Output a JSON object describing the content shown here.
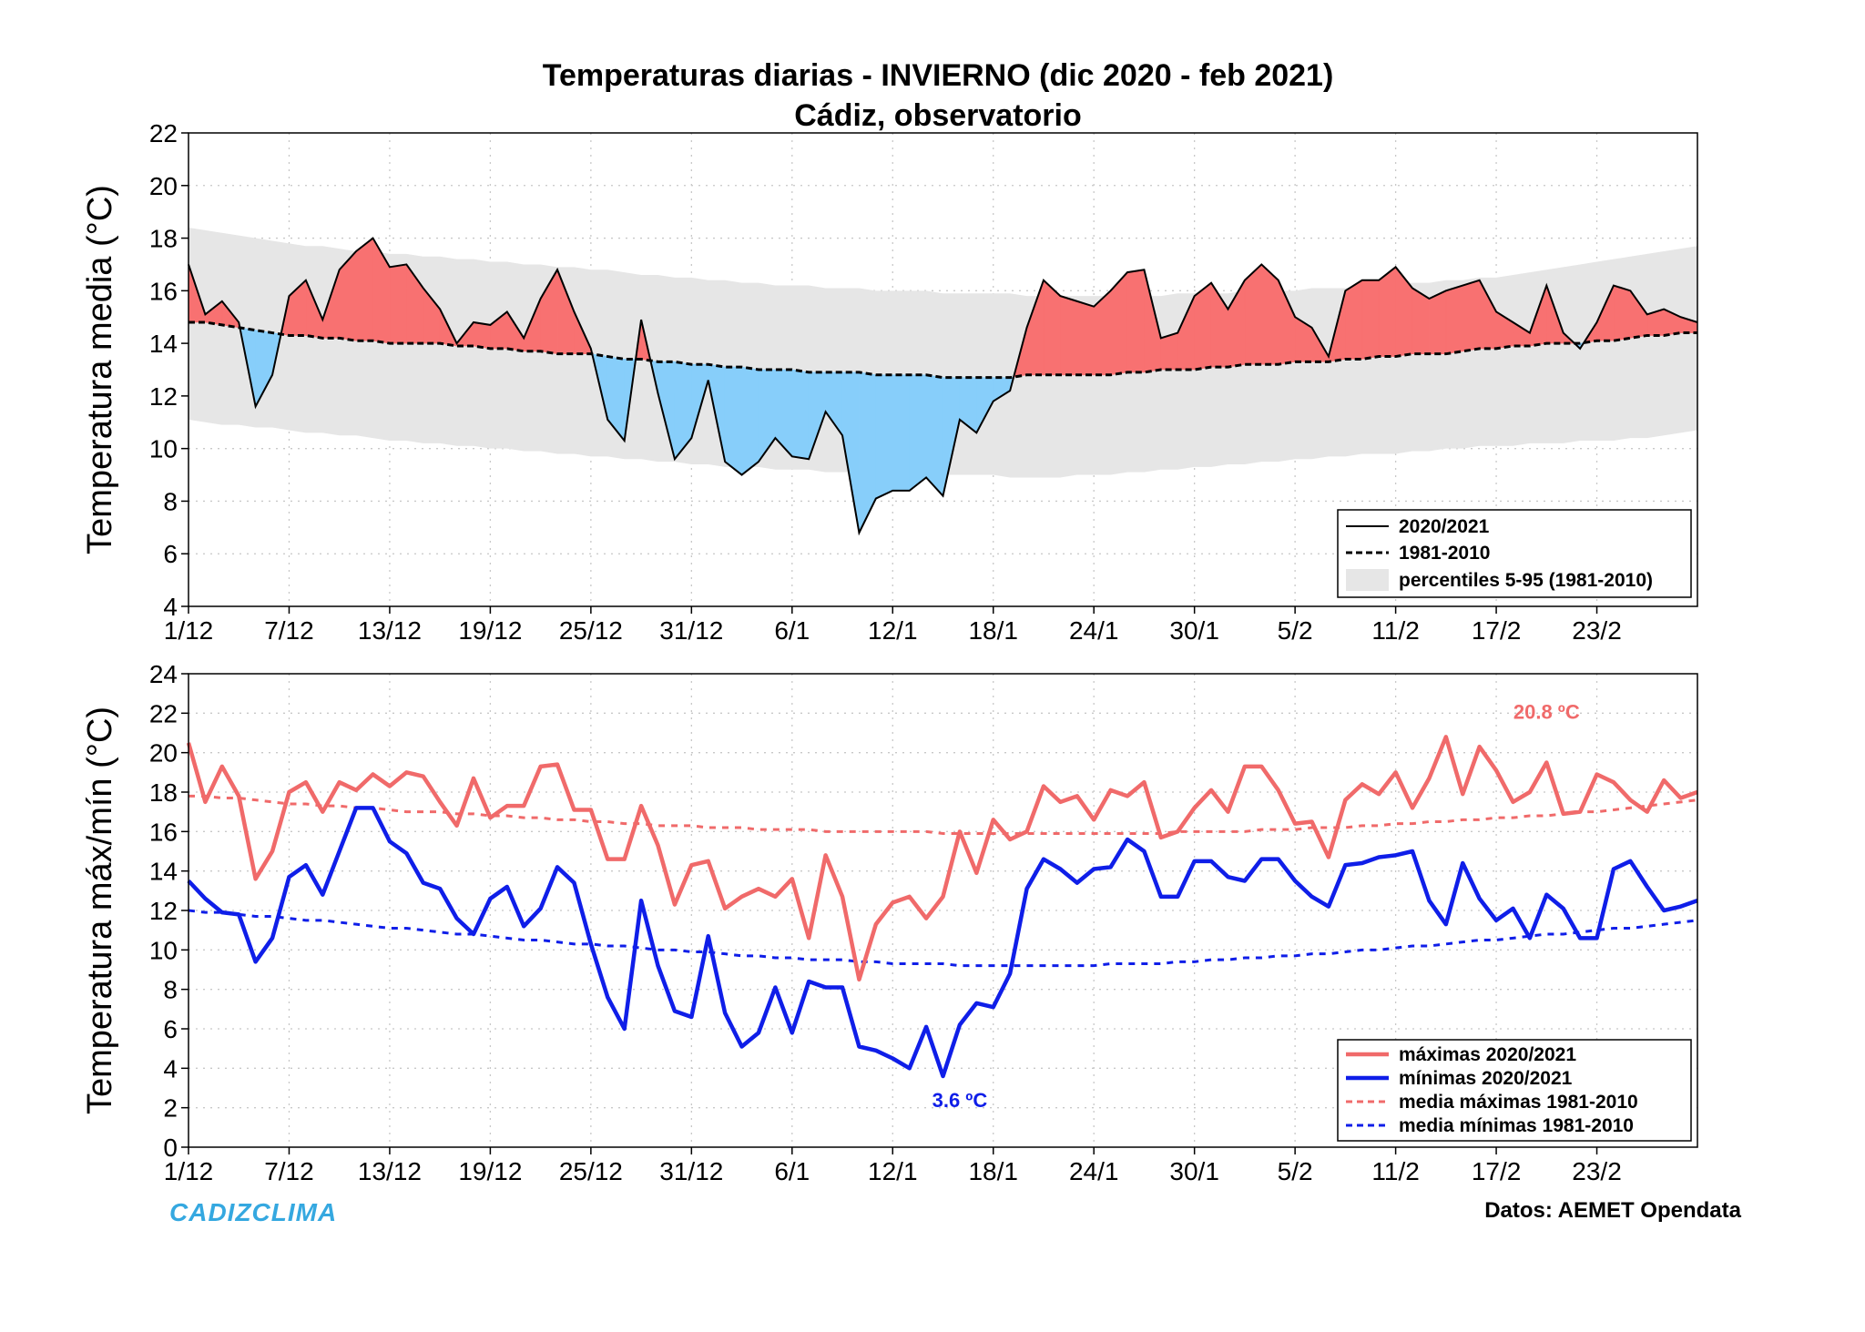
{
  "titles": {
    "line1": "Temperaturas diarias - INVIERNO (dic 2020 - feb 2021)",
    "line2": "Cádiz, observatorio"
  },
  "colors": {
    "above": "#f87171",
    "below": "#87cefa",
    "band": "#e6e6e6",
    "max_line": "#f06a6a",
    "min_line": "#0f1ee8",
    "brand": "#35a8e0"
  },
  "footer": {
    "brand": "CADIZCLIMA",
    "source": "Datos: AEMET Opendata"
  },
  "chart_data": [
    {
      "type": "area",
      "ylabel": "Temperatura media (°C)",
      "ylim": [
        4,
        22
      ],
      "yticks": [
        4,
        6,
        8,
        10,
        12,
        14,
        16,
        18,
        20,
        22
      ],
      "xticks": [
        "1/12",
        "7/12",
        "13/12",
        "19/12",
        "25/12",
        "31/12",
        "6/1",
        "12/1",
        "18/1",
        "24/1",
        "30/1",
        "5/2",
        "11/2",
        "17/2",
        "23/2"
      ],
      "tick_every": 6,
      "n_days": 91,
      "grid": true,
      "legend_position": "bottom-right",
      "legend": [
        "2020/2021",
        "1981-2010",
        "percentiles 5-95 (1981-2010)"
      ],
      "series": [
        {
          "name": "2020/2021",
          "values": [
            17.0,
            15.1,
            15.6,
            14.8,
            11.6,
            12.8,
            15.8,
            16.4,
            14.9,
            16.8,
            17.5,
            18.0,
            16.9,
            17.0,
            16.1,
            15.3,
            14.0,
            14.8,
            14.7,
            15.2,
            14.2,
            15.7,
            16.8,
            15.2,
            13.8,
            11.1,
            10.3,
            14.9,
            12.1,
            9.6,
            10.4,
            12.6,
            9.5,
            9.0,
            9.5,
            10.4,
            9.7,
            9.6,
            11.4,
            10.5,
            6.8,
            8.1,
            8.4,
            8.4,
            8.9,
            8.2,
            11.1,
            10.6,
            11.8,
            12.2,
            14.6,
            16.4,
            15.8,
            15.6,
            15.4,
            16.0,
            16.7,
            16.8,
            14.2,
            14.4,
            15.8,
            16.3,
            15.3,
            16.4,
            17.0,
            16.4,
            15.0,
            14.6,
            13.5,
            16.0,
            16.4,
            16.4,
            16.9,
            16.1,
            15.7,
            16.0,
            16.2,
            16.4,
            15.2,
            14.8,
            14.4,
            16.2,
            14.4,
            13.8,
            14.8,
            16.2,
            16.0,
            15.1,
            15.3,
            15.0,
            14.8
          ]
        },
        {
          "name": "1981-2010",
          "values": [
            14.8,
            14.8,
            14.7,
            14.6,
            14.5,
            14.4,
            14.3,
            14.3,
            14.2,
            14.2,
            14.1,
            14.1,
            14.0,
            14.0,
            14.0,
            14.0,
            13.9,
            13.9,
            13.8,
            13.8,
            13.7,
            13.7,
            13.6,
            13.6,
            13.6,
            13.5,
            13.4,
            13.4,
            13.3,
            13.3,
            13.2,
            13.2,
            13.1,
            13.1,
            13.0,
            13.0,
            13.0,
            12.9,
            12.9,
            12.9,
            12.9,
            12.8,
            12.8,
            12.8,
            12.8,
            12.7,
            12.7,
            12.7,
            12.7,
            12.7,
            12.8,
            12.8,
            12.8,
            12.8,
            12.8,
            12.8,
            12.9,
            12.9,
            13.0,
            13.0,
            13.0,
            13.1,
            13.1,
            13.2,
            13.2,
            13.2,
            13.3,
            13.3,
            13.3,
            13.4,
            13.4,
            13.5,
            13.5,
            13.6,
            13.6,
            13.6,
            13.7,
            13.8,
            13.8,
            13.9,
            13.9,
            14.0,
            14.0,
            14.0,
            14.1,
            14.1,
            14.2,
            14.3,
            14.3,
            14.4,
            14.4
          ]
        },
        {
          "name": "percentil 95 (1981-2010)",
          "values": [
            18.4,
            18.3,
            18.2,
            18.1,
            18.0,
            17.9,
            17.8,
            17.7,
            17.7,
            17.6,
            17.5,
            17.5,
            17.4,
            17.4,
            17.3,
            17.3,
            17.2,
            17.2,
            17.1,
            17.1,
            17.0,
            17.0,
            16.9,
            16.9,
            16.8,
            16.8,
            16.7,
            16.6,
            16.6,
            16.5,
            16.5,
            16.4,
            16.4,
            16.3,
            16.3,
            16.2,
            16.2,
            16.2,
            16.1,
            16.1,
            16.1,
            16.0,
            16.0,
            16.0,
            16.0,
            15.9,
            15.9,
            15.9,
            15.9,
            15.9,
            15.8,
            15.8,
            15.8,
            15.8,
            15.8,
            15.8,
            15.8,
            15.8,
            15.8,
            15.9,
            15.9,
            15.9,
            15.9,
            16.0,
            16.0,
            16.0,
            16.0,
            16.1,
            16.1,
            16.1,
            16.2,
            16.2,
            16.2,
            16.3,
            16.3,
            16.4,
            16.4,
            16.5,
            16.5,
            16.6,
            16.7,
            16.8,
            16.9,
            17.0,
            17.1,
            17.2,
            17.3,
            17.4,
            17.5,
            17.6,
            17.7
          ]
        },
        {
          "name": "percentil 5 (1981-2010)",
          "values": [
            11.1,
            11.0,
            10.9,
            10.9,
            10.8,
            10.8,
            10.7,
            10.6,
            10.6,
            10.5,
            10.5,
            10.4,
            10.3,
            10.3,
            10.2,
            10.2,
            10.1,
            10.1,
            10.0,
            10.0,
            9.9,
            9.9,
            9.8,
            9.8,
            9.7,
            9.7,
            9.6,
            9.6,
            9.5,
            9.5,
            9.4,
            9.4,
            9.3,
            9.3,
            9.3,
            9.2,
            9.2,
            9.2,
            9.1,
            9.1,
            9.1,
            9.1,
            9.1,
            9.0,
            9.0,
            9.0,
            9.0,
            9.0,
            9.0,
            8.9,
            8.9,
            8.9,
            8.9,
            9.0,
            9.0,
            9.0,
            9.1,
            9.1,
            9.2,
            9.2,
            9.3,
            9.3,
            9.4,
            9.4,
            9.5,
            9.5,
            9.6,
            9.6,
            9.7,
            9.7,
            9.8,
            9.8,
            9.8,
            9.9,
            9.9,
            10.0,
            10.0,
            10.1,
            10.1,
            10.1,
            10.2,
            10.2,
            10.2,
            10.3,
            10.3,
            10.3,
            10.4,
            10.4,
            10.5,
            10.6,
            10.7
          ]
        }
      ]
    },
    {
      "type": "line",
      "ylabel": "Temperatura máx/mín (°C)",
      "ylim": [
        0,
        24
      ],
      "yticks": [
        0,
        2,
        4,
        6,
        8,
        10,
        12,
        14,
        16,
        18,
        20,
        22,
        24
      ],
      "xticks": [
        "1/12",
        "7/12",
        "13/12",
        "19/12",
        "25/12",
        "31/12",
        "6/1",
        "12/1",
        "18/1",
        "24/1",
        "30/1",
        "5/2",
        "11/2",
        "17/2",
        "23/2"
      ],
      "tick_every": 6,
      "n_days": 91,
      "grid": true,
      "legend_position": "bottom-right",
      "legend": [
        "máximas 2020/2021",
        "mínimas 2020/2021",
        "media máximas 1981-2010",
        "media mínimas 1981-2010"
      ],
      "annotations": [
        {
          "text": "20.8 ºC",
          "series": "máximas 2020/2021",
          "x": 81,
          "y": 20.8
        },
        {
          "text": "3.6 ºC",
          "series": "mínimas 2020/2021",
          "x": 46,
          "y": 3.6
        }
      ],
      "series": [
        {
          "name": "máximas 2020/2021",
          "values": [
            20.5,
            17.5,
            19.3,
            17.8,
            13.6,
            15.0,
            18.0,
            18.5,
            17.0,
            18.5,
            18.1,
            18.9,
            18.3,
            19.0,
            18.8,
            17.5,
            16.3,
            18.7,
            16.7,
            17.3,
            17.3,
            19.3,
            19.4,
            17.1,
            17.1,
            14.6,
            14.6,
            17.3,
            15.3,
            12.3,
            14.3,
            14.5,
            12.1,
            12.7,
            13.1,
            12.7,
            13.6,
            10.6,
            14.8,
            12.7,
            8.5,
            11.3,
            12.4,
            12.7,
            11.6,
            12.7,
            16.0,
            13.9,
            16.6,
            15.6,
            16.0,
            18.3,
            17.5,
            17.8,
            16.6,
            18.1,
            17.8,
            18.5,
            15.7,
            16.0,
            17.2,
            18.1,
            17.0,
            19.3,
            19.3,
            18.1,
            16.4,
            16.5,
            14.7,
            17.6,
            18.4,
            17.9,
            19.0,
            17.2,
            18.7,
            20.8,
            17.9,
            20.3,
            19.1,
            17.5,
            18.0,
            19.5,
            16.9,
            17.0,
            18.9,
            18.5,
            17.6,
            17.0,
            18.6,
            17.7,
            18.0
          ]
        },
        {
          "name": "mínimas 2020/2021",
          "values": [
            13.5,
            12.6,
            11.9,
            11.8,
            9.4,
            10.6,
            13.7,
            14.3,
            12.8,
            15.0,
            17.2,
            17.2,
            15.5,
            14.9,
            13.4,
            13.1,
            11.6,
            10.8,
            12.6,
            13.2,
            11.2,
            12.1,
            14.2,
            13.4,
            10.3,
            7.6,
            6.0,
            12.5,
            9.2,
            6.9,
            6.6,
            10.7,
            6.8,
            5.1,
            5.8,
            8.1,
            5.8,
            8.4,
            8.1,
            8.1,
            5.1,
            4.9,
            4.5,
            4.0,
            6.1,
            3.6,
            6.2,
            7.3,
            7.1,
            8.8,
            13.1,
            14.6,
            14.1,
            13.4,
            14.1,
            14.2,
            15.6,
            15.0,
            12.7,
            12.7,
            14.5,
            14.5,
            13.7,
            13.5,
            14.6,
            14.6,
            13.5,
            12.7,
            12.2,
            14.3,
            14.4,
            14.7,
            14.8,
            15.0,
            12.5,
            11.3,
            14.4,
            12.6,
            11.5,
            12.1,
            10.6,
            12.8,
            12.1,
            10.6,
            10.6,
            14.1,
            14.5,
            13.2,
            12.0,
            12.2,
            12.5
          ]
        },
        {
          "name": "media máximas 1981-2010",
          "values": [
            17.8,
            17.8,
            17.7,
            17.7,
            17.6,
            17.5,
            17.4,
            17.4,
            17.3,
            17.3,
            17.2,
            17.2,
            17.1,
            17.0,
            17.0,
            17.0,
            16.9,
            16.9,
            16.8,
            16.8,
            16.7,
            16.7,
            16.6,
            16.6,
            16.5,
            16.5,
            16.4,
            16.4,
            16.3,
            16.3,
            16.3,
            16.2,
            16.2,
            16.2,
            16.1,
            16.1,
            16.1,
            16.1,
            16.0,
            16.0,
            16.0,
            16.0,
            16.0,
            16.0,
            16.0,
            15.9,
            15.9,
            15.9,
            15.9,
            15.9,
            15.9,
            15.9,
            15.9,
            15.9,
            15.9,
            15.9,
            15.9,
            15.9,
            15.9,
            16.0,
            16.0,
            16.0,
            16.0,
            16.0,
            16.1,
            16.1,
            16.1,
            16.2,
            16.2,
            16.2,
            16.3,
            16.3,
            16.4,
            16.4,
            16.5,
            16.5,
            16.6,
            16.6,
            16.7,
            16.7,
            16.8,
            16.8,
            16.9,
            17.0,
            17.0,
            17.1,
            17.2,
            17.3,
            17.4,
            17.5,
            17.6
          ]
        },
        {
          "name": "media mínimas 1981-2010",
          "values": [
            12.0,
            11.9,
            11.9,
            11.8,
            11.7,
            11.7,
            11.6,
            11.5,
            11.5,
            11.4,
            11.3,
            11.2,
            11.1,
            11.1,
            11.0,
            10.9,
            10.8,
            10.8,
            10.7,
            10.6,
            10.5,
            10.5,
            10.4,
            10.3,
            10.3,
            10.2,
            10.2,
            10.1,
            10.0,
            10.0,
            9.9,
            9.9,
            9.8,
            9.7,
            9.7,
            9.6,
            9.6,
            9.5,
            9.5,
            9.5,
            9.4,
            9.4,
            9.3,
            9.3,
            9.3,
            9.3,
            9.2,
            9.2,
            9.2,
            9.2,
            9.2,
            9.2,
            9.2,
            9.2,
            9.2,
            9.3,
            9.3,
            9.3,
            9.3,
            9.4,
            9.4,
            9.5,
            9.5,
            9.6,
            9.6,
            9.7,
            9.7,
            9.8,
            9.8,
            9.9,
            10.0,
            10.0,
            10.1,
            10.2,
            10.2,
            10.3,
            10.4,
            10.5,
            10.5,
            10.6,
            10.7,
            10.8,
            10.8,
            10.9,
            11.0,
            11.1,
            11.1,
            11.2,
            11.3,
            11.4,
            11.5
          ]
        }
      ]
    }
  ]
}
